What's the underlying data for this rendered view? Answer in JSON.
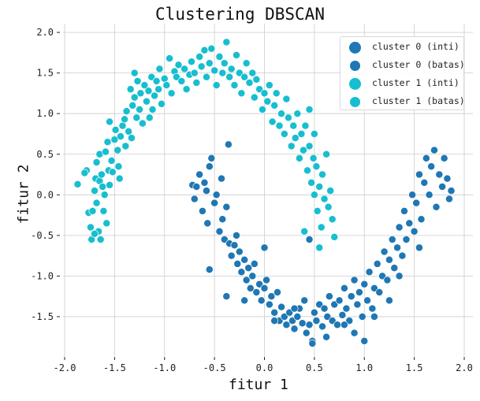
{
  "chart_data": {
    "type": "scatter",
    "title": "Clustering DBSCAN",
    "xlabel": "fitur 1",
    "ylabel": "fitur 2",
    "xlim": [
      -2.13,
      2.08
    ],
    "ylim": [
      -1.99,
      2.12
    ],
    "xticks": [
      "-2.0",
      "-1.5",
      "-1.0",
      "-0.5",
      "0.0",
      "0.5",
      "1.0",
      "1.5",
      "2.0"
    ],
    "yticks": [
      "2.0",
      "1.5",
      "1.0",
      "0.5",
      "0.0",
      "-0.5",
      "-1.0",
      "-1.5"
    ],
    "grid": true,
    "legend_position": "upper right",
    "legend": [
      {
        "label": "cluster 0 (inti)",
        "color": "#1f77b4",
        "size": "large"
      },
      {
        "label": "cluster 0 (batas)",
        "color": "#1f77b4",
        "size": "small"
      },
      {
        "label": "cluster 1 (inti)",
        "color": "#17becf",
        "size": "large"
      },
      {
        "label": "cluster 1 (batas)",
        "color": "#17becf",
        "size": "small"
      }
    ],
    "series": [
      {
        "name": "cluster 1",
        "color": "#17becf",
        "points": [
          [
            -1.87,
            0.13
          ],
          [
            -1.78,
            0.3
          ],
          [
            -1.8,
            0.27
          ],
          [
            -1.73,
            -0.55
          ],
          [
            -1.76,
            -0.22
          ],
          [
            -1.7,
            0.05
          ],
          [
            -1.68,
            -0.1
          ],
          [
            -1.72,
            -0.2
          ],
          [
            -1.66,
            -0.45
          ],
          [
            -1.64,
            -0.55
          ],
          [
            -1.7,
            -0.48
          ],
          [
            -1.69,
            0.2
          ],
          [
            -1.65,
            0.17
          ],
          [
            -1.63,
            0.25
          ],
          [
            -1.62,
            0.1
          ],
          [
            -1.68,
            0.4
          ],
          [
            -1.65,
            0.5
          ],
          [
            -1.61,
            -0.2
          ],
          [
            -1.6,
            0.0
          ],
          [
            -1.59,
            0.53
          ],
          [
            -1.57,
            0.65
          ],
          [
            -1.56,
            0.3
          ],
          [
            -1.55,
            0.12
          ],
          [
            -1.53,
            0.42
          ],
          [
            -1.52,
            0.28
          ],
          [
            -1.5,
            0.68
          ],
          [
            -1.49,
            0.8
          ],
          [
            -1.47,
            0.55
          ],
          [
            -1.46,
            0.35
          ],
          [
            -1.44,
            0.72
          ],
          [
            -1.42,
            0.85
          ],
          [
            -1.4,
            0.93
          ],
          [
            -1.39,
            0.6
          ],
          [
            -1.38,
            1.03
          ],
          [
            -1.36,
            0.78
          ],
          [
            -1.34,
            1.3
          ],
          [
            -1.33,
            0.7
          ],
          [
            -1.32,
            1.1
          ],
          [
            -1.3,
            1.2
          ],
          [
            -1.28,
            0.95
          ],
          [
            -1.27,
            1.4
          ],
          [
            -1.25,
            1.05
          ],
          [
            -1.24,
            1.25
          ],
          [
            -1.22,
            0.88
          ],
          [
            -1.2,
            1.35
          ],
          [
            -1.18,
            1.15
          ],
          [
            -1.16,
            1.28
          ],
          [
            -1.15,
            0.95
          ],
          [
            -1.13,
            1.45
          ],
          [
            -1.12,
            1.05
          ],
          [
            -1.1,
            1.22
          ],
          [
            -1.08,
            1.4
          ],
          [
            -1.06,
            1.3
          ],
          [
            -1.05,
            1.55
          ],
          [
            -1.03,
            1.12
          ],
          [
            -1.0,
            1.43
          ],
          [
            -0.98,
            1.35
          ],
          [
            -0.95,
            1.68
          ],
          [
            -0.93,
            1.25
          ],
          [
            -0.9,
            1.52
          ],
          [
            -0.88,
            1.45
          ],
          [
            -0.86,
            1.6
          ],
          [
            -0.83,
            1.4
          ],
          [
            -0.8,
            1.55
          ],
          [
            -0.78,
            1.3
          ],
          [
            -0.75,
            1.48
          ],
          [
            -0.73,
            1.64
          ],
          [
            -0.7,
            1.5
          ],
          [
            -0.68,
            1.38
          ],
          [
            -0.65,
            1.7
          ],
          [
            -0.63,
            1.58
          ],
          [
            -0.6,
            1.78
          ],
          [
            -0.58,
            1.45
          ],
          [
            -0.55,
            1.62
          ],
          [
            -0.53,
            1.8
          ],
          [
            -0.5,
            1.53
          ],
          [
            -0.48,
            1.35
          ],
          [
            -0.45,
            1.7
          ],
          [
            -0.42,
            1.5
          ],
          [
            -0.4,
            1.62
          ],
          [
            -0.38,
            1.88
          ],
          [
            -0.35,
            1.45
          ],
          [
            -0.33,
            1.55
          ],
          [
            -0.3,
            1.35
          ],
          [
            -0.28,
            1.72
          ],
          [
            -0.25,
            1.5
          ],
          [
            -0.23,
            1.25
          ],
          [
            -0.2,
            1.45
          ],
          [
            -0.18,
            1.62
          ],
          [
            -0.15,
            1.38
          ],
          [
            -0.12,
            1.5
          ],
          [
            -0.1,
            1.2
          ],
          [
            -0.08,
            1.42
          ],
          [
            -0.05,
            1.3
          ],
          [
            -0.02,
            1.05
          ],
          [
            0.0,
            1.25
          ],
          [
            0.03,
            1.15
          ],
          [
            0.05,
            1.35
          ],
          [
            0.08,
            0.9
          ],
          [
            0.1,
            1.1
          ],
          [
            0.12,
            1.25
          ],
          [
            0.15,
            0.85
          ],
          [
            0.17,
            1.0
          ],
          [
            0.2,
            0.75
          ],
          [
            0.22,
            1.18
          ],
          [
            0.24,
            0.95
          ],
          [
            0.27,
            0.6
          ],
          [
            0.29,
            0.85
          ],
          [
            0.31,
            0.7
          ],
          [
            0.33,
            1.0
          ],
          [
            0.35,
            0.45
          ],
          [
            0.37,
            0.75
          ],
          [
            0.39,
            0.55
          ],
          [
            0.41,
            0.85
          ],
          [
            0.43,
            0.3
          ],
          [
            0.45,
            0.6
          ],
          [
            0.47,
            0.15
          ],
          [
            0.49,
            0.45
          ],
          [
            0.5,
            0.0
          ],
          [
            0.52,
            0.35
          ],
          [
            0.53,
            -0.2
          ],
          [
            0.55,
            0.1
          ],
          [
            0.57,
            -0.4
          ],
          [
            0.58,
            0.25
          ],
          [
            0.6,
            -0.05
          ],
          [
            0.62,
            0.5
          ],
          [
            0.64,
            -0.15
          ],
          [
            0.66,
            0.05
          ],
          [
            0.68,
            -0.3
          ],
          [
            0.55,
            -0.65
          ],
          [
            0.4,
            -0.45
          ],
          [
            0.7,
            -0.52
          ],
          [
            0.5,
            0.75
          ],
          [
            0.45,
            1.05
          ],
          [
            -1.45,
            0.2
          ],
          [
            -1.58,
            -0.35
          ],
          [
            -1.74,
            -0.4
          ],
          [
            -1.55,
            0.9
          ],
          [
            -1.3,
            1.5
          ]
        ]
      },
      {
        "name": "cluster 0",
        "color": "#1f77b4",
        "points": [
          [
            -0.72,
            0.12
          ],
          [
            -0.68,
            0.1
          ],
          [
            -0.65,
            0.25
          ],
          [
            -0.6,
            0.15
          ],
          [
            -0.58,
            0.05
          ],
          [
            -0.7,
            -0.05
          ],
          [
            -0.62,
            -0.2
          ],
          [
            -0.57,
            -0.35
          ],
          [
            -0.55,
            0.35
          ],
          [
            -0.53,
            0.45
          ],
          [
            -0.5,
            -0.1
          ],
          [
            -0.48,
            0.0
          ],
          [
            -0.45,
            -0.45
          ],
          [
            -0.43,
            0.2
          ],
          [
            -0.42,
            -0.3
          ],
          [
            -0.4,
            -0.55
          ],
          [
            -0.38,
            -0.15
          ],
          [
            -0.36,
            0.62
          ],
          [
            -0.35,
            -0.6
          ],
          [
            -0.33,
            -0.75
          ],
          [
            -0.3,
            -0.62
          ],
          [
            -0.28,
            -0.5
          ],
          [
            -0.27,
            -0.85
          ],
          [
            -0.25,
            -0.7
          ],
          [
            -0.23,
            -0.95
          ],
          [
            -0.2,
            -0.8
          ],
          [
            -0.18,
            -1.05
          ],
          [
            -0.16,
            -0.9
          ],
          [
            -0.14,
            -1.15
          ],
          [
            -0.12,
            -1.0
          ],
          [
            -0.1,
            -0.85
          ],
          [
            -0.08,
            -1.2
          ],
          [
            -0.05,
            -1.1
          ],
          [
            -0.03,
            -1.3
          ],
          [
            0.0,
            -1.15
          ],
          [
            0.02,
            -1.05
          ],
          [
            0.05,
            -1.35
          ],
          [
            0.07,
            -1.25
          ],
          [
            0.1,
            -1.45
          ],
          [
            0.13,
            -1.2
          ],
          [
            0.15,
            -1.55
          ],
          [
            0.17,
            -1.38
          ],
          [
            0.2,
            -1.5
          ],
          [
            0.22,
            -1.6
          ],
          [
            0.25,
            -1.45
          ],
          [
            0.28,
            -1.55
          ],
          [
            0.3,
            -1.65
          ],
          [
            0.33,
            -1.5
          ],
          [
            0.35,
            -1.4
          ],
          [
            0.38,
            -1.58
          ],
          [
            0.4,
            -1.3
          ],
          [
            0.42,
            -1.7
          ],
          [
            0.45,
            -1.6
          ],
          [
            0.48,
            -1.8
          ],
          [
            0.5,
            -1.45
          ],
          [
            0.52,
            -1.55
          ],
          [
            0.55,
            -1.35
          ],
          [
            0.58,
            -1.62
          ],
          [
            0.6,
            -1.4
          ],
          [
            0.63,
            -1.5
          ],
          [
            0.65,
            -1.25
          ],
          [
            0.68,
            -1.55
          ],
          [
            0.7,
            -1.35
          ],
          [
            0.73,
            -1.6
          ],
          [
            0.75,
            -1.3
          ],
          [
            0.78,
            -1.48
          ],
          [
            0.8,
            -1.15
          ],
          [
            0.82,
            -1.4
          ],
          [
            0.85,
            -1.55
          ],
          [
            0.87,
            -1.25
          ],
          [
            0.9,
            -1.05
          ],
          [
            0.93,
            -1.35
          ],
          [
            0.95,
            -1.2
          ],
          [
            0.98,
            -1.5
          ],
          [
            1.0,
            -1.1
          ],
          [
            1.03,
            -1.3
          ],
          [
            1.05,
            -0.95
          ],
          [
            1.08,
            -1.4
          ],
          [
            1.1,
            -1.15
          ],
          [
            1.13,
            -0.85
          ],
          [
            1.15,
            -1.2
          ],
          [
            1.18,
            -1.0
          ],
          [
            1.2,
            -0.7
          ],
          [
            1.23,
            -1.05
          ],
          [
            1.25,
            -0.8
          ],
          [
            1.28,
            -0.55
          ],
          [
            1.3,
            -0.9
          ],
          [
            1.33,
            -0.65
          ],
          [
            1.35,
            -0.4
          ],
          [
            1.38,
            -0.75
          ],
          [
            1.4,
            -0.2
          ],
          [
            1.42,
            -0.55
          ],
          [
            1.45,
            -0.35
          ],
          [
            1.48,
            0.0
          ],
          [
            1.5,
            -0.45
          ],
          [
            1.52,
            -0.1
          ],
          [
            1.55,
            0.25
          ],
          [
            1.57,
            -0.3
          ],
          [
            1.6,
            0.15
          ],
          [
            1.62,
            0.45
          ],
          [
            1.65,
            0.0
          ],
          [
            1.67,
            0.35
          ],
          [
            1.7,
            0.55
          ],
          [
            1.72,
            -0.15
          ],
          [
            1.75,
            0.25
          ],
          [
            1.78,
            0.1
          ],
          [
            1.8,
            0.45
          ],
          [
            1.83,
            0.2
          ],
          [
            1.85,
            -0.05
          ],
          [
            1.87,
            0.05
          ],
          [
            -0.38,
            -1.25
          ],
          [
            -0.55,
            -0.92
          ],
          [
            0.0,
            -0.65
          ],
          [
            1.0,
            -1.8
          ],
          [
            0.45,
            -0.55
          ],
          [
            1.25,
            -1.3
          ],
          [
            0.9,
            -1.7
          ],
          [
            0.48,
            -1.83
          ],
          [
            0.3,
            -1.4
          ],
          [
            0.1,
            -1.55
          ],
          [
            -0.2,
            -1.3
          ],
          [
            1.1,
            -1.5
          ],
          [
            1.55,
            -0.65
          ],
          [
            1.35,
            -1.0
          ],
          [
            0.62,
            -1.75
          ],
          [
            0.8,
            -1.6
          ]
        ]
      }
    ]
  }
}
